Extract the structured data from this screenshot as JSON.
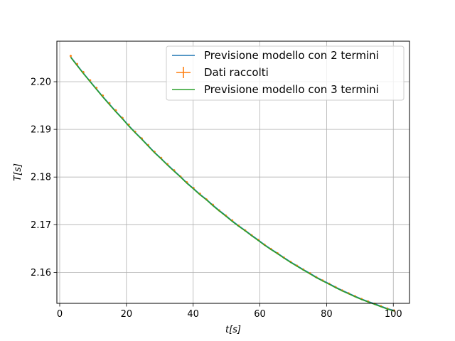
{
  "chart_data": {
    "type": "line",
    "title": "",
    "xlabel": "t[s]",
    "ylabel": "T[s]",
    "xlim": [
      -0.85,
      104.85
    ],
    "ylim": [
      2.1535,
      2.2085
    ],
    "grid": true,
    "legend_position": "top-right",
    "x_ticks": [
      0,
      20,
      40,
      60,
      80,
      100
    ],
    "y_ticks": [
      2.16,
      2.17,
      2.18,
      2.19,
      2.2
    ],
    "x_tick_labels": [
      "0",
      "20",
      "40",
      "60",
      "80",
      "100"
    ],
    "y_tick_labels": [
      "2.16",
      "2.17",
      "2.18",
      "2.19",
      "2.20"
    ],
    "x": [
      3.3,
      5.2,
      7.1,
      9.1,
      11.0,
      12.9,
      14.9,
      16.8,
      18.8,
      20.7,
      22.6,
      24.6,
      26.5,
      28.4,
      30.4,
      32.3,
      34.3,
      36.2,
      38.1,
      40.1,
      42.0,
      44.0,
      45.9,
      47.8,
      49.8,
      51.7,
      53.6,
      55.6,
      57.5,
      59.5,
      61.4,
      63.3,
      65.3,
      67.2,
      69.2,
      71.1,
      73.0,
      75.0,
      76.9,
      78.8,
      80.8,
      82.7,
      84.7,
      86.6,
      88.5,
      90.5,
      92.4,
      94.4,
      96.3,
      98.2,
      100.2
    ],
    "series": [
      {
        "name": "Previsione modello con 2 termini",
        "style": "line",
        "color": "#1f77b4",
        "values": [
          2.2052,
          2.2035,
          2.2018,
          2.2001,
          2.1985,
          2.1969,
          2.1953,
          2.1938,
          2.1923,
          2.1908,
          2.1894,
          2.188,
          2.1866,
          2.1852,
          2.1839,
          2.1826,
          2.1813,
          2.1801,
          2.1788,
          2.1776,
          2.1764,
          2.1753,
          2.1741,
          2.173,
          2.1719,
          2.1708,
          2.1698,
          2.1688,
          2.1678,
          2.1668,
          2.1658,
          2.1649,
          2.164,
          2.1631,
          2.1622,
          2.1614,
          2.1606,
          2.1598,
          2.159,
          2.1583,
          2.1576,
          2.1569,
          2.1562,
          2.1556,
          2.155,
          2.1544,
          2.1539,
          2.1534,
          2.1529,
          2.1524,
          2.152
        ]
      },
      {
        "name": "Dati raccolti",
        "style": "errorbar",
        "color": "#ff7f0e",
        "values": [
          2.2054,
          2.2037,
          2.202,
          2.2003,
          2.1987,
          2.1971,
          2.1955,
          2.194,
          2.1924,
          2.191,
          2.1895,
          2.1881,
          2.1867,
          2.1853,
          2.184,
          2.1827,
          2.1814,
          2.1801,
          2.1789,
          2.1777,
          2.1765,
          2.1753,
          2.1742,
          2.173,
          2.1719,
          2.1709,
          2.1698,
          2.1688,
          2.1678,
          2.1668,
          2.1658,
          2.1649,
          2.164,
          2.1631,
          2.1622,
          2.1614,
          2.1606,
          2.1598,
          2.159,
          2.1583,
          2.1576,
          2.1569,
          2.1562,
          2.1556,
          2.155,
          2.1544,
          2.1539,
          2.1534,
          2.1529,
          2.1524,
          2.152
        ]
      },
      {
        "name": "Previsione modello con 3 termini",
        "style": "line",
        "color": "#2ca02c",
        "values": [
          2.2051,
          2.2034,
          2.2017,
          2.2,
          2.1984,
          2.1968,
          2.1952,
          2.1937,
          2.1922,
          2.1907,
          2.1893,
          2.1879,
          2.1865,
          2.1851,
          2.1838,
          2.1825,
          2.1812,
          2.18,
          2.1787,
          2.1775,
          2.1763,
          2.1752,
          2.174,
          2.1729,
          2.1718,
          2.1707,
          2.1697,
          2.1687,
          2.1677,
          2.1667,
          2.1657,
          2.1648,
          2.1639,
          2.163,
          2.1621,
          2.1613,
          2.1605,
          2.1597,
          2.1589,
          2.1582,
          2.1575,
          2.1568,
          2.1561,
          2.1555,
          2.1549,
          2.1543,
          2.1538,
          2.1533,
          2.1528,
          2.1523,
          2.1519
        ]
      }
    ]
  }
}
